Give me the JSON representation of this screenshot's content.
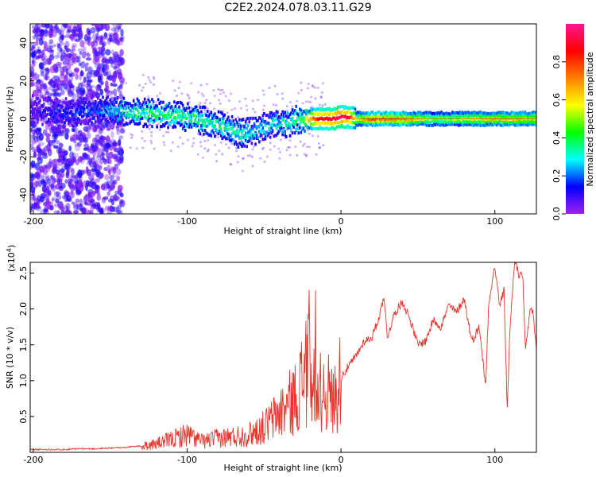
{
  "title": "C2E2.2024.078.03.11.G29",
  "chart_data": [
    {
      "type": "heatmap",
      "name": "spectrogram",
      "xlabel": "Height of straight line (km)",
      "ylabel": "Frequency (Hz)",
      "xlim": [
        -202,
        127
      ],
      "ylim": [
        -50,
        50
      ],
      "xticks": [
        -200,
        -100,
        0,
        100
      ],
      "xtick_labels": [
        "-200",
        "-100",
        "0",
        "100"
      ],
      "yticks": [
        -40,
        -20,
        0,
        20,
        40
      ],
      "ytick_labels": [
        "-40",
        "-20",
        "0",
        "20",
        "40"
      ],
      "colorbar": {
        "label": "Normalized spectral amplitude",
        "range": [
          0,
          1
        ],
        "ticks": [
          0.0,
          0.2,
          0.4,
          0.6,
          0.8
        ],
        "tick_labels": [
          "0.0",
          "0.2",
          "0.4",
          "0.6",
          "0.8"
        ],
        "colors": [
          "#a020f0",
          "#0000ff",
          "#00ffff",
          "#00ff00",
          "#ffff00",
          "#ff8000",
          "#ff0000",
          "#ff1493"
        ]
      },
      "ridge": {
        "x": [
          -200,
          -180,
          -160,
          -140,
          -120,
          -100,
          -80,
          -65,
          -55,
          -45,
          -35,
          -25,
          -15,
          -5,
          0,
          5,
          10,
          20,
          40,
          60,
          80,
          100,
          127
        ],
        "freq": [
          5,
          3,
          5,
          4,
          3,
          1,
          -3,
          -8,
          -6,
          -3,
          -2,
          0,
          0,
          0,
          1,
          1,
          0,
          0,
          0,
          0,
          0,
          0,
          0
        ],
        "amplitude": [
          0.1,
          0.15,
          0.2,
          0.35,
          0.42,
          0.4,
          0.38,
          0.33,
          0.3,
          0.3,
          0.35,
          0.45,
          0.85,
          0.9,
          0.95,
          0.9,
          0.55,
          0.75,
          0.72,
          0.5,
          0.55,
          0.65,
          0.62
        ]
      }
    },
    {
      "type": "line",
      "name": "snr",
      "xlabel": "Height of straight line (km)",
      "ylabel": "SNR (10 * v/v)",
      "y_scale_label": "(x10",
      "y_scale_exp": "4",
      "xlim": [
        -202,
        127
      ],
      "ylim": [
        0,
        2.65
      ],
      "xticks": [
        -200,
        -100,
        0,
        100
      ],
      "xtick_labels": [
        "-200",
        "-100",
        "0",
        "100"
      ],
      "yticks": [
        0.5,
        1.0,
        1.5,
        2.0,
        2.5
      ],
      "ytick_labels": [
        "0.5",
        "1.0",
        "1.5",
        "2.0",
        "2.5"
      ],
      "color": "#e8342a",
      "series": [
        {
          "x": [
            -202,
            -190,
            -180,
            -170,
            -160,
            -150,
            -140,
            -130,
            -120,
            -110,
            -100,
            -90,
            -80,
            -70,
            -60,
            -50,
            -45,
            -40,
            -35,
            -30,
            -25,
            -20,
            -15,
            -10,
            -5,
            0,
            5,
            10,
            15,
            20,
            25,
            28,
            30,
            35,
            40,
            45,
            50,
            55,
            60,
            65,
            70,
            75,
            80,
            85,
            90,
            94,
            96,
            100,
            103,
            106,
            108,
            110,
            113,
            116,
            118,
            120,
            123,
            125,
            127
          ],
          "y": [
            0.03,
            0.03,
            0.03,
            0.04,
            0.04,
            0.05,
            0.06,
            0.08,
            0.12,
            0.18,
            0.25,
            0.15,
            0.2,
            0.22,
            0.25,
            0.35,
            0.45,
            0.55,
            0.65,
            0.75,
            1.0,
            1.2,
            0.8,
            0.9,
            0.7,
            1.05,
            1.2,
            1.35,
            1.55,
            1.6,
            1.9,
            2.2,
            1.6,
            1.95,
            2.1,
            1.85,
            1.5,
            1.55,
            1.85,
            1.75,
            2.05,
            1.95,
            2.15,
            1.55,
            1.75,
            0.9,
            2.1,
            2.6,
            2.05,
            2.25,
            0.6,
            1.8,
            2.7,
            2.45,
            2.5,
            1.4,
            2.05,
            1.9,
            1.4
          ]
        }
      ]
    }
  ]
}
